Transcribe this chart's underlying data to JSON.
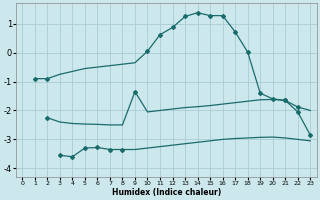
{
  "xlabel": "Humidex (Indice chaleur)",
  "background_color": "#cce8ec",
  "grid_color": "#aaccd4",
  "line_color": "#1a6b6b",
  "xlim": [
    -0.5,
    23.5
  ],
  "ylim": [
    -4.3,
    1.7
  ],
  "yticks": [
    -4,
    -3,
    -2,
    -1,
    0,
    1
  ],
  "xticks": [
    0,
    1,
    2,
    3,
    4,
    5,
    6,
    7,
    8,
    9,
    10,
    11,
    12,
    13,
    14,
    15,
    16,
    17,
    18,
    19,
    20,
    21,
    22,
    23
  ],
  "curve1_x": [
    1,
    2,
    3,
    4,
    5,
    6,
    7,
    8,
    9,
    10,
    11,
    12,
    13,
    14,
    15,
    16,
    17,
    18,
    19,
    20,
    21,
    22,
    23
  ],
  "curve1_y": [
    -0.9,
    -0.9,
    -0.75,
    -0.65,
    -0.55,
    -0.5,
    -0.45,
    -0.4,
    -0.35,
    0.05,
    0.62,
    0.87,
    1.25,
    1.38,
    1.28,
    1.28,
    0.72,
    0.02,
    -1.4,
    -1.6,
    -1.65,
    -2.05,
    -2.85
  ],
  "curve2_x": [
    2,
    3,
    4,
    5,
    6,
    7,
    8,
    9,
    10,
    11,
    12,
    13,
    14,
    15,
    16,
    17,
    18,
    19,
    20,
    21,
    22,
    23
  ],
  "curve2_y": [
    -2.25,
    -2.4,
    -2.45,
    -2.47,
    -2.48,
    -2.5,
    -2.5,
    -1.35,
    -2.05,
    -2.0,
    -1.95,
    -1.9,
    -1.87,
    -1.83,
    -1.78,
    -1.73,
    -1.68,
    -1.63,
    -1.62,
    -1.65,
    -1.88,
    -2.0
  ],
  "curve3_x": [
    3,
    4,
    5,
    6,
    7,
    8,
    9,
    10,
    11,
    12,
    13,
    14,
    15,
    16,
    17,
    18,
    19,
    20,
    21,
    22,
    23
  ],
  "curve3_y": [
    -3.55,
    -3.6,
    -3.3,
    -3.28,
    -3.35,
    -3.35,
    -3.35,
    -3.3,
    -3.25,
    -3.2,
    -3.15,
    -3.1,
    -3.05,
    -3.0,
    -2.97,
    -2.95,
    -2.93,
    -2.92,
    -2.95,
    -3.0,
    -3.05
  ]
}
